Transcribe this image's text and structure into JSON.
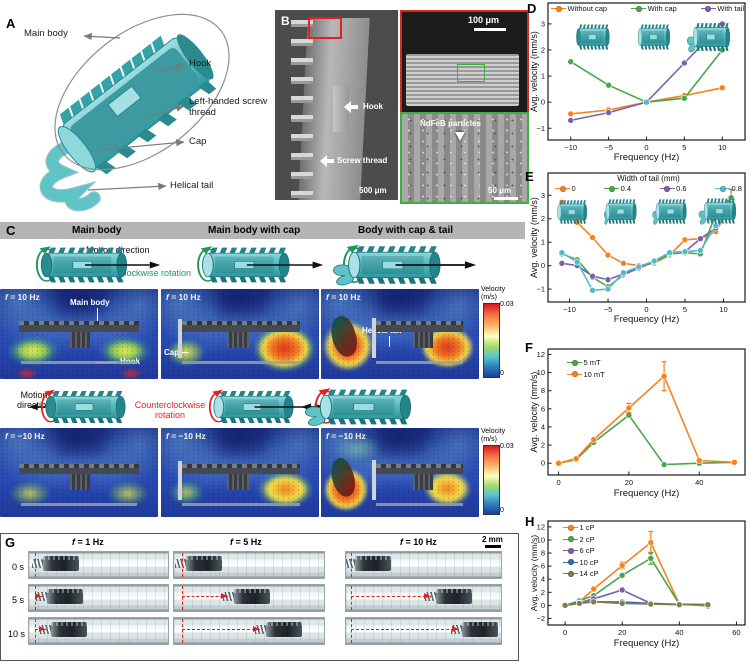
{
  "a": {
    "letter": "A",
    "main_body": "Main body",
    "hook": "Hook",
    "thread": "Left-handed screw thread",
    "cap": "Cap",
    "tail": "Helical tail"
  },
  "b": {
    "letter": "B",
    "hook": "Hook",
    "screw_thread": "Screw thread",
    "particles": "NdFeB particles",
    "sb_main": "500 μm",
    "sb_top": "100 μm",
    "sb_bottom": "50 μm"
  },
  "c": {
    "letter": "C",
    "f": "f",
    "titles": [
      "Main body",
      "Main body with cap",
      "Body with cap & tail"
    ],
    "motion_top": "Motion direction",
    "rot_top": "Clockwise rotation",
    "motion_bottom": "Motion direction",
    "rot_bottom": "Counterclockwise rotation",
    "freq_top": " = 10 Hz",
    "freq_bottom": " = −10 Hz",
    "ann": {
      "main_body": "Main body",
      "hook": "Hook",
      "cap": "Cap",
      "tail": "Helical tail"
    },
    "colorbar": {
      "title": "Velocity",
      "units": "(m/s)",
      "max": "0.03",
      "min": "0"
    }
  },
  "g": {
    "letter": "G",
    "f": "f",
    "headers": [
      " = 1 Hz",
      " = 5 Hz",
      " = 10 Hz"
    ],
    "rows": [
      "0 s",
      "5 s",
      "10 s"
    ],
    "scale": "2 mm"
  },
  "colors": {
    "orange": "#F5821F",
    "green": "#4AA64C",
    "purple": "#7B5FA9",
    "cyan": "#56B8CA",
    "blue": "#3668B0",
    "olive": "#7F7F4E",
    "teal": "#5FC4C6",
    "rot_cw": "#169C54",
    "rot_ccw": "#E0231E"
  },
  "chart_data": "see charts",
  "charts": [
    {
      "id": "D",
      "letter": "D",
      "type": "line",
      "xlabel": "Frequency (Hz)",
      "ylabel": "Avg. velocity (mm/s)",
      "xlim": [
        -13,
        13
      ],
      "ylim": [
        -1.45,
        3.8
      ],
      "xticks": [
        -10,
        -5,
        0,
        5,
        10
      ],
      "yticks": [
        -1,
        0,
        1,
        2,
        3
      ],
      "legend": [
        {
          "label": "Without cap",
          "color": "#F5821F"
        },
        {
          "label": "With cap",
          "color": "#4AA64C"
        },
        {
          "label": "With tail",
          "color": "#7B5FA9"
        }
      ],
      "series": [
        {
          "name": "Without cap",
          "color": "#F5821F",
          "x": [
            -10,
            -5,
            0,
            5,
            10
          ],
          "y": [
            -0.45,
            -0.3,
            0,
            0.25,
            0.55
          ]
        },
        {
          "name": "With cap",
          "color": "#4AA64C",
          "x": [
            -10,
            -5,
            0,
            5,
            10
          ],
          "y": [
            1.55,
            0.65,
            0,
            0.15,
            2.0
          ]
        },
        {
          "name": "With tail",
          "color": "#7B5FA9",
          "x": [
            -10,
            -5,
            0,
            5,
            10
          ],
          "y": [
            -0.7,
            -0.4,
            0,
            1.5,
            3.0
          ]
        },
        {
          "name": "overlap at zero",
          "color": "#56B8CA",
          "x": [
            0
          ],
          "y": [
            0
          ]
        }
      ]
    },
    {
      "id": "E",
      "letter": "E",
      "type": "line",
      "legend_title": "Width of tail (mm)",
      "xlabel": "Frequency (Hz)",
      "ylabel": "Avg. velocity (mm/s)",
      "xlim": [
        -12.8,
        12.8
      ],
      "ylim": [
        -1.55,
        3.95
      ],
      "xticks": [
        -10,
        -5,
        0,
        5,
        10
      ],
      "yticks": [
        -1,
        0,
        1,
        2,
        3
      ],
      "legend": [
        {
          "label": "0",
          "color": "#F5821F"
        },
        {
          "label": "0.4",
          "color": "#4AA64C"
        },
        {
          "label": "0.6",
          "color": "#7B5FA9"
        },
        {
          "label": "0.8",
          "color": "#56B8CA"
        }
      ],
      "series": [
        {
          "name": "0",
          "color": "#F5821F",
          "x": [
            -11,
            -9,
            -7,
            -5,
            -3,
            -1,
            1,
            3,
            5,
            7,
            9,
            11
          ],
          "y": [
            2.7,
            1.85,
            1.2,
            0.45,
            0.1,
            0.0,
            0.1,
            0.45,
            1.1,
            1.15,
            1.45,
            2.6
          ]
        },
        {
          "name": "0.4",
          "color": "#4AA64C",
          "x": [
            -11,
            -9,
            -7,
            -5,
            -3,
            -1,
            1,
            3,
            5,
            7,
            9,
            11
          ],
          "y": [
            0.5,
            0.25,
            -0.5,
            -0.9,
            -0.4,
            -0.1,
            0.15,
            0.5,
            0.55,
            0.5,
            2.2,
            2.9
          ],
          "err": [
            0,
            0,
            0,
            0,
            0,
            0,
            0,
            0,
            0,
            0,
            0,
            0.35
          ]
        },
        {
          "name": "0.6",
          "color": "#7B5FA9",
          "x": [
            -11,
            -9,
            -7,
            -5,
            -3,
            -1,
            1,
            3,
            5,
            7,
            9,
            11
          ],
          "y": [
            0.1,
            0.0,
            -0.45,
            -0.6,
            -0.35,
            -0.1,
            0.2,
            0.55,
            0.6,
            1.15,
            1.6,
            2.55
          ]
        },
        {
          "name": "0.8",
          "color": "#56B8CA",
          "x": [
            -11,
            -9,
            -7,
            -5,
            -3,
            -1,
            1,
            3,
            5,
            7,
            9,
            11
          ],
          "y": [
            0.55,
            0.15,
            -1.05,
            -1.0,
            -0.3,
            -0.05,
            0.2,
            0.55,
            0.6,
            0.65,
            1.7,
            2.4
          ]
        }
      ]
    },
    {
      "id": "F",
      "letter": "F",
      "type": "line",
      "xlabel": "Frequency (Hz)",
      "ylabel": "Avg. velocity (mm/s)",
      "xlim": [
        -3,
        53
      ],
      "ylim": [
        -1.3,
        12.6
      ],
      "xticks": [
        0,
        20,
        40
      ],
      "yticks": [
        0,
        2,
        4,
        6,
        8,
        10,
        12
      ],
      "legend": [
        {
          "label": "5 mT",
          "color": "#4AA64C"
        },
        {
          "label": "10 mT",
          "color": "#F5821F"
        }
      ],
      "series": [
        {
          "name": "5 mT",
          "color": "#4AA64C",
          "x": [
            0,
            5,
            10,
            20,
            30,
            40,
            50
          ],
          "y": [
            0,
            0.4,
            2.3,
            5.3,
            -0.15,
            0,
            0.1
          ]
        },
        {
          "name": "10 mT",
          "color": "#F5821F",
          "x": [
            0,
            5,
            10,
            20,
            30,
            40,
            50
          ],
          "y": [
            0,
            0.5,
            2.6,
            6.1,
            9.6,
            0.3,
            0.1
          ],
          "err": [
            0,
            0,
            0,
            0.5,
            1.6,
            0,
            0
          ]
        }
      ]
    },
    {
      "id": "H",
      "letter": "H",
      "type": "line",
      "xlabel": "Frequency (Hz)",
      "ylabel": "Avg. velocity (mm/s)",
      "xlim": [
        -6,
        63
      ],
      "ylim": [
        -3,
        12.9
      ],
      "xticks": [
        0,
        20,
        40,
        60
      ],
      "yticks": [
        -2,
        0,
        2,
        4,
        6,
        8,
        10,
        12
      ],
      "legend": [
        {
          "label": "1 cP",
          "color": "#F5821F"
        },
        {
          "label": "2 cP",
          "color": "#4AA64C"
        },
        {
          "label": "6 cP",
          "color": "#7B5FA9"
        },
        {
          "label": "10 cP",
          "color": "#3668B0"
        },
        {
          "label": "14 cP",
          "color": "#7F7F4E"
        }
      ],
      "series": [
        {
          "name": "1 cP",
          "color": "#F5821F",
          "x": [
            0,
            5,
            10,
            20,
            30,
            40,
            50
          ],
          "y": [
            0,
            0.5,
            2.5,
            6.1,
            9.6,
            0.2,
            0.1
          ],
          "err": [
            0,
            0,
            0.3,
            0.5,
            1.7,
            0,
            0
          ]
        },
        {
          "name": "2 cP",
          "color": "#4AA64C",
          "x": [
            0,
            5,
            10,
            20,
            30,
            40,
            50
          ],
          "y": [
            0,
            0.7,
            1.5,
            4.6,
            7.2,
            0.2,
            -0.1
          ],
          "err": [
            0,
            0,
            0,
            0,
            0.9,
            0,
            0
          ]
        },
        {
          "name": "6 cP",
          "color": "#7B5FA9",
          "x": [
            0,
            5,
            10,
            20,
            30,
            40,
            50
          ],
          "y": [
            0,
            0.4,
            1.0,
            2.35,
            0.3,
            0.15,
            0.1
          ]
        },
        {
          "name": "10 cP",
          "color": "#3668B0",
          "x": [
            0,
            5,
            10,
            20,
            30,
            40,
            50
          ],
          "y": [
            0,
            0.35,
            0.55,
            0.5,
            0.3,
            0.15,
            0.1
          ]
        },
        {
          "name": "14 cP",
          "color": "#7F7F4E",
          "x": [
            0,
            5,
            10,
            20,
            30,
            40,
            50
          ],
          "y": [
            0,
            0.3,
            0.55,
            0.3,
            0.2,
            0.1,
            0.1
          ]
        }
      ]
    }
  ]
}
